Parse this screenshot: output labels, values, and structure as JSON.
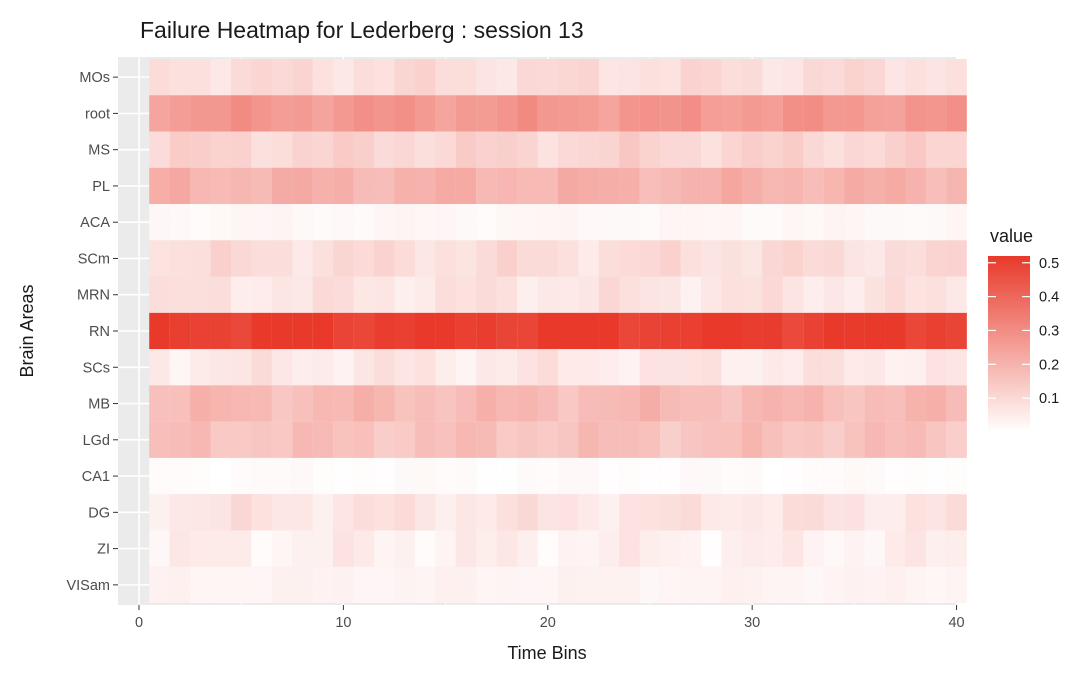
{
  "chart_data": {
    "type": "heatmap",
    "title": "Failure Heatmap for Lederberg : session 13",
    "xlabel": "Time Bins",
    "ylabel": "Brain Areas",
    "xlim": [
      0,
      41
    ],
    "x_ticks": [
      0,
      10,
      20,
      30,
      40
    ],
    "x": [
      1,
      2,
      3,
      4,
      5,
      6,
      7,
      8,
      9,
      10,
      11,
      12,
      13,
      14,
      15,
      16,
      17,
      18,
      19,
      20,
      21,
      22,
      23,
      24,
      25,
      26,
      27,
      28,
      29,
      30,
      31,
      32,
      33,
      34,
      35,
      36,
      37,
      38,
      39,
      40
    ],
    "y_categories": [
      "MOs",
      "root",
      "MS",
      "PL",
      "ACA",
      "SCm",
      "MRN",
      "RN",
      "SCs",
      "MB",
      "LGd",
      "CA1",
      "DG",
      "ZI",
      "VISam"
    ],
    "row_values": {
      "MOs": 0.09,
      "root": 0.27,
      "MS": 0.11,
      "PL": 0.2,
      "ACA": 0.02,
      "SCm": 0.09,
      "MRN": 0.07,
      "RN": 0.51,
      "SCs": 0.06,
      "MB": 0.18,
      "LGd": 0.16,
      "CA1": 0.01,
      "DG": 0.07,
      "ZI": 0.04,
      "VISam": 0.03
    },
    "legend": {
      "title": "value",
      "ticks": [
        "0.5",
        "0.4",
        "0.3",
        "0.2",
        "0.1"
      ],
      "tick_values": [
        0.5,
        0.4,
        0.3,
        0.2,
        0.1
      ],
      "min": 0.0,
      "max": 0.52,
      "placement": "right"
    },
    "colors": {
      "low": "#ffffff",
      "high": "#e8392a",
      "panel_background": "#ebebeb",
      "grid": "#ffffff"
    },
    "grid": true
  }
}
